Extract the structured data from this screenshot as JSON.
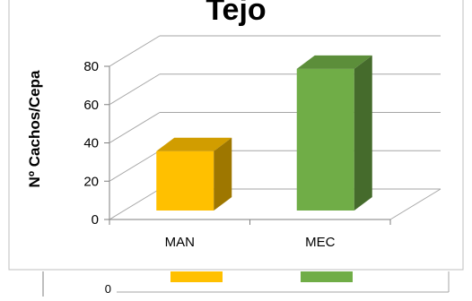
{
  "chart_data": {
    "type": "bar",
    "title": "Tejo",
    "categories": [
      "MAN",
      "MEC"
    ],
    "series": [
      {
        "values": [
          31,
          74
        ],
        "colors": [
          "#ffc000",
          "#70ad47"
        ]
      }
    ],
    "ylabel": "Nº Cachos/Cepa",
    "xlabel": "",
    "ylim": [
      0,
      80
    ],
    "yticks": [
      "0",
      "20",
      "40",
      "60",
      "80"
    ],
    "grid": true,
    "legend": "none",
    "style": "3d-bar"
  },
  "lower_chart_fragment": {
    "y_tick_label": "0"
  }
}
